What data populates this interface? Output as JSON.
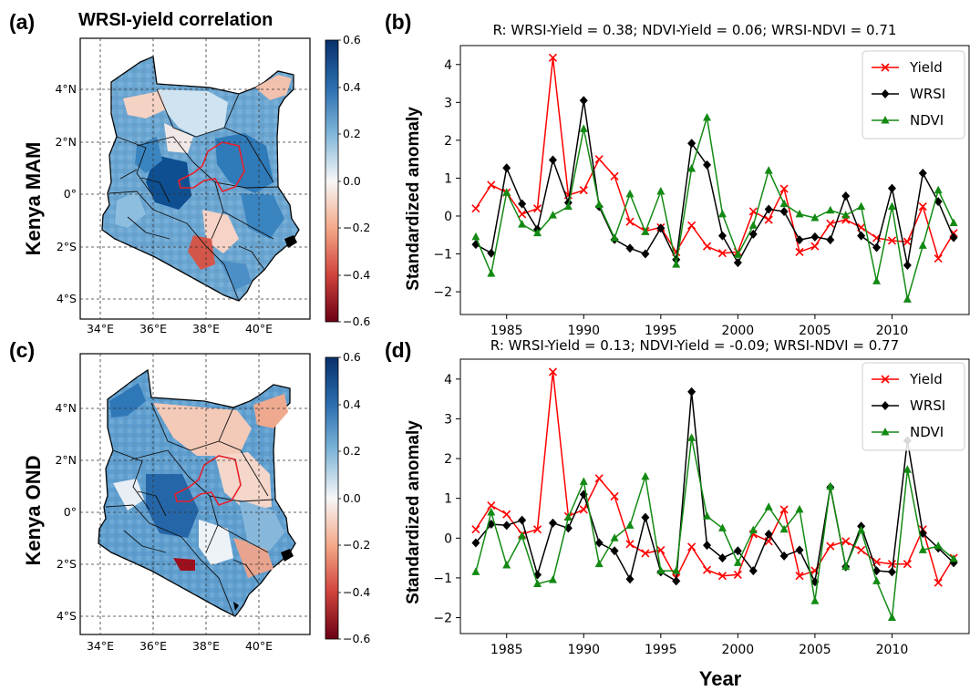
{
  "figure": {
    "map_title": "WRSI-yield correlation",
    "xlabel": "Year",
    "ylabel": "Standardized anomaly"
  },
  "colors": {
    "yield": "#ff0000",
    "wrsi": "#000000",
    "ndvi": "#138a13",
    "district": "#e8202a"
  },
  "maps": [
    {
      "letter": "(a)",
      "row_label": "Kenya MAM",
      "colorbar_ticks": [
        "0.6",
        "0.4",
        "0.2",
        "0.0",
        "−0.2",
        "−0.4",
        "−0.6"
      ],
      "lat_ticks": [
        "4°N",
        "2°N",
        "0°",
        "2°S",
        "4°S"
      ],
      "lon_ticks": [
        "34°E",
        "36°E",
        "38°E",
        "40°E"
      ]
    },
    {
      "letter": "(c)",
      "row_label": "Kenya OND",
      "colorbar_ticks": [
        "0.6",
        "0.4",
        "0.2",
        "0.0",
        "−0.2",
        "−0.4",
        "−0.6"
      ],
      "lat_ticks": [
        "4°N",
        "2°N",
        "0°",
        "2°S",
        "4°S"
      ],
      "lon_ticks": [
        "34°E",
        "36°E",
        "38°E",
        "40°E"
      ]
    }
  ],
  "chart_data": [
    {
      "type": "line",
      "letter": "(b)",
      "title": "R: WRSI-Yield = 0.38; NDVI-Yield = 0.06; WRSI-NDVI = 0.71",
      "xlabel": "",
      "ylabel": "Standardized anomaly",
      "xlim": [
        1982,
        2015
      ],
      "ylim": [
        -2.6,
        4.5
      ],
      "xticks": [
        1985,
        1990,
        1995,
        2000,
        2005,
        2010
      ],
      "yticks": [
        -2,
        -1,
        0,
        1,
        2,
        3,
        4
      ],
      "legend": "top-right",
      "x": [
        1983,
        1984,
        1985,
        1986,
        1987,
        1988,
        1989,
        1990,
        1991,
        1992,
        1993,
        1994,
        1995,
        1996,
        1997,
        1998,
        1999,
        2000,
        2001,
        2002,
        2003,
        2004,
        2005,
        2006,
        2007,
        2008,
        2009,
        2010,
        2011,
        2012,
        2013,
        2014
      ],
      "series": [
        {
          "name": "Yield",
          "marker": "x",
          "color": "#ff0000",
          "values": [
            0.2,
            0.82,
            0.62,
            0.05,
            0.2,
            4.18,
            0.55,
            0.68,
            1.5,
            1.05,
            -0.15,
            -0.4,
            -0.3,
            -0.95,
            -0.25,
            -0.8,
            -0.98,
            -0.95,
            0.12,
            -0.1,
            0.72,
            -0.95,
            -0.8,
            -0.2,
            -0.1,
            -0.3,
            -0.58,
            -0.65,
            -0.68,
            0.25,
            -1.12,
            -0.45
          ]
        },
        {
          "name": "WRSI",
          "marker": "diamond",
          "color": "#000000",
          "values": [
            -0.75,
            -0.98,
            1.27,
            0.32,
            -0.35,
            1.48,
            0.35,
            3.05,
            0.25,
            -0.62,
            -0.85,
            -1.0,
            -0.32,
            -1.15,
            1.92,
            1.35,
            -0.52,
            -1.23,
            -0.48,
            0.18,
            0.12,
            -0.63,
            -0.55,
            -0.63,
            0.53,
            -0.52,
            -0.83,
            0.73,
            -1.3,
            1.13,
            0.38,
            -0.57
          ]
        },
        {
          "name": "NDVI",
          "marker": "triangle",
          "color": "#138a13",
          "values": [
            -0.55,
            -1.52,
            0.62,
            -0.22,
            -0.45,
            0.02,
            0.25,
            2.3,
            0.3,
            -0.58,
            0.58,
            -0.42,
            0.65,
            -1.28,
            1.25,
            2.6,
            0.05,
            -1.02,
            -0.25,
            1.2,
            0.32,
            0.05,
            -0.05,
            0.15,
            0.02,
            0.25,
            -1.72,
            0.25,
            -2.2,
            -0.78,
            0.68,
            -0.18
          ]
        }
      ]
    },
    {
      "type": "line",
      "letter": "(d)",
      "title": "R: WRSI-Yield = 0.13; NDVI-Yield = -0.09; WRSI-NDVI = 0.77",
      "xlabel": "Year",
      "ylabel": "Standardized anomaly",
      "xlim": [
        1982,
        2015
      ],
      "ylim": [
        -2.4,
        4.5
      ],
      "xticks": [
        1985,
        1990,
        1995,
        2000,
        2005,
        2010
      ],
      "yticks": [
        -2,
        -1,
        0,
        1,
        2,
        3,
        4
      ],
      "legend": "top-right",
      "x": [
        1983,
        1984,
        1985,
        1986,
        1987,
        1988,
        1989,
        1990,
        1991,
        1992,
        1993,
        1994,
        1995,
        1996,
        1997,
        1998,
        1999,
        2000,
        2001,
        2002,
        2003,
        2004,
        2005,
        2006,
        2007,
        2008,
        2009,
        2010,
        2011,
        2012,
        2013,
        2014
      ],
      "series": [
        {
          "name": "Yield",
          "marker": "x",
          "color": "#ff0000",
          "values": [
            0.22,
            0.82,
            0.6,
            0.1,
            0.22,
            4.18,
            0.55,
            0.72,
            1.5,
            1.05,
            -0.15,
            -0.38,
            -0.3,
            -1.0,
            -0.22,
            -0.8,
            -0.95,
            -0.92,
            0.1,
            -0.08,
            0.72,
            -0.95,
            -0.82,
            -0.2,
            -0.08,
            -0.3,
            -0.6,
            -0.65,
            -0.65,
            0.22,
            -1.12,
            -0.5
          ]
        },
        {
          "name": "WRSI",
          "marker": "diamond",
          "color": "#000000",
          "values": [
            -0.12,
            0.35,
            0.32,
            0.45,
            -0.92,
            0.38,
            0.25,
            1.1,
            -0.12,
            -0.32,
            -1.03,
            0.52,
            -0.85,
            -1.08,
            3.68,
            -0.18,
            -0.5,
            -0.32,
            -0.82,
            0.1,
            -0.45,
            -0.3,
            -1.1,
            1.28,
            -0.72,
            0.3,
            -0.82,
            -0.85,
            2.45,
            0.12,
            -0.25,
            -0.62
          ]
        },
        {
          "name": "NDVI",
          "marker": "triangle",
          "color": "#138a13",
          "values": [
            -0.85,
            0.65,
            -0.68,
            0.05,
            -1.15,
            -1.05,
            0.52,
            1.42,
            -0.65,
            0.0,
            0.32,
            1.55,
            -0.82,
            -0.82,
            2.52,
            0.55,
            0.25,
            -0.62,
            0.2,
            0.78,
            0.22,
            0.72,
            -1.58,
            1.3,
            -0.72,
            0.2,
            -1.08,
            -2.0,
            1.72,
            -0.3,
            -0.2,
            -0.52
          ]
        }
      ]
    }
  ]
}
